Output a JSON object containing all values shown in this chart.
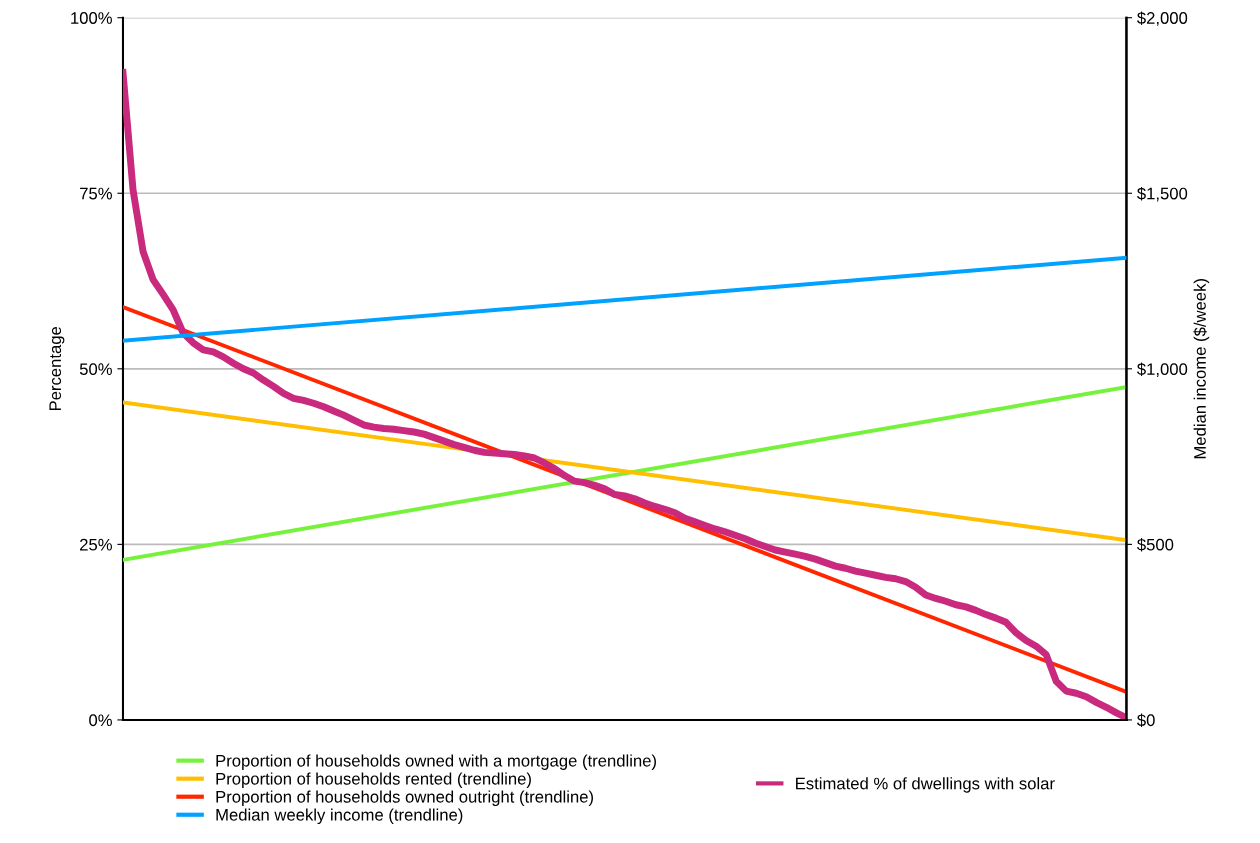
{
  "chart_data": {
    "type": "line",
    "ylabel": "Percentage",
    "y2label": "Median income ($/week)",
    "categories": [
      null,
      null,
      null,
      null,
      null,
      null,
      null,
      null,
      null,
      null,
      null,
      null,
      null,
      null,
      null,
      null,
      null,
      null,
      null,
      null,
      null,
      null,
      null,
      null,
      null,
      null,
      null,
      null,
      null,
      null,
      null,
      null,
      null,
      null,
      null,
      null,
      null,
      null,
      null,
      null,
      null,
      null,
      null,
      null,
      null,
      null,
      null,
      null,
      null,
      null,
      null,
      null,
      null,
      null,
      null,
      null,
      null,
      null,
      null,
      null,
      null,
      null,
      null,
      null,
      null,
      null,
      null,
      null,
      null,
      null,
      null,
      null,
      null,
      null,
      null,
      null,
      null,
      null,
      null,
      null,
      null,
      null,
      null,
      null,
      null,
      null,
      null,
      null,
      null,
      null,
      null,
      null,
      null,
      null,
      null,
      null,
      null,
      null,
      null,
      null,
      null
    ],
    "ylim": [
      0,
      100
    ],
    "yticks": [
      {
        "value": 0,
        "label": "0%"
      },
      {
        "value": 25,
        "label": "25%"
      },
      {
        "value": 50,
        "label": "50%"
      },
      {
        "value": 75,
        "label": "75%"
      },
      {
        "value": 100,
        "label": "100%"
      }
    ],
    "y2lim": [
      0,
      2000
    ],
    "y2ticks": [
      {
        "value": 0,
        "label": "$0"
      },
      {
        "value": 500,
        "label": "$500"
      },
      {
        "value": 1000,
        "label": "$1,000"
      },
      {
        "value": 1500,
        "label": "$1,500"
      },
      {
        "value": 2000,
        "label": "$2,000"
      }
    ],
    "grid": "y",
    "legend": "bottom",
    "marker": "none",
    "line_style": "solid",
    "series": [
      {
        "name": "Proportion of households owned with a mortgage (trendline)",
        "color": "#77f23c",
        "values": [
          22.8,
          null,
          null,
          null,
          null,
          null,
          null,
          null,
          null,
          null,
          null,
          null,
          null,
          null,
          null,
          null,
          null,
          null,
          null,
          null,
          null,
          null,
          null,
          null,
          null,
          null,
          null,
          null,
          null,
          null,
          null,
          null,
          null,
          null,
          null,
          null,
          null,
          null,
          null,
          null,
          null,
          null,
          null,
          null,
          null,
          null,
          null,
          null,
          null,
          null,
          null,
          null,
          null,
          null,
          null,
          null,
          null,
          null,
          null,
          null,
          null,
          null,
          null,
          null,
          null,
          null,
          null,
          null,
          null,
          null,
          null,
          null,
          null,
          null,
          null,
          null,
          null,
          null,
          null,
          null,
          null,
          null,
          null,
          null,
          null,
          null,
          null,
          null,
          null,
          null,
          null,
          null,
          null,
          null,
          null,
          null,
          null,
          null,
          null,
          null,
          47.4
        ]
      },
      {
        "name": "Proportion of households rented (trendline)",
        "color": "#ffbf00",
        "values": [
          45.2,
          null,
          null,
          null,
          null,
          null,
          null,
          null,
          null,
          null,
          null,
          null,
          null,
          null,
          null,
          null,
          null,
          null,
          null,
          null,
          null,
          null,
          null,
          null,
          null,
          null,
          null,
          null,
          null,
          null,
          null,
          null,
          null,
          null,
          null,
          null,
          null,
          null,
          null,
          null,
          null,
          null,
          null,
          null,
          null,
          null,
          null,
          null,
          null,
          null,
          null,
          null,
          null,
          null,
          null,
          null,
          null,
          null,
          null,
          null,
          null,
          null,
          null,
          null,
          null,
          null,
          null,
          null,
          null,
          null,
          null,
          null,
          null,
          null,
          null,
          null,
          null,
          null,
          null,
          null,
          null,
          null,
          null,
          null,
          null,
          null,
          null,
          null,
          null,
          null,
          null,
          null,
          null,
          null,
          null,
          null,
          null,
          null,
          null,
          null,
          25.6
        ]
      },
      {
        "name": "Proportion of households owned outright (trendline)",
        "color": "#ff2600",
        "values": [
          58.8,
          null,
          null,
          null,
          null,
          null,
          null,
          null,
          null,
          null,
          null,
          null,
          null,
          null,
          null,
          null,
          null,
          null,
          null,
          null,
          null,
          null,
          null,
          null,
          null,
          null,
          null,
          null,
          null,
          null,
          null,
          null,
          null,
          null,
          null,
          null,
          null,
          null,
          null,
          null,
          null,
          null,
          null,
          null,
          null,
          null,
          null,
          null,
          null,
          null,
          null,
          null,
          null,
          null,
          null,
          null,
          null,
          null,
          null,
          null,
          null,
          null,
          null,
          null,
          null,
          null,
          null,
          null,
          null,
          null,
          null,
          null,
          null,
          null,
          null,
          null,
          null,
          null,
          null,
          null,
          null,
          null,
          null,
          null,
          null,
          null,
          null,
          null,
          null,
          null,
          null,
          null,
          null,
          null,
          null,
          null,
          null,
          null,
          null,
          null,
          4.0
        ]
      },
      {
        "name": "Median weekly income (trendline)",
        "color": "#00a2ff",
        "axis": "y2",
        "values": [
          1080,
          null,
          null,
          null,
          null,
          null,
          null,
          null,
          null,
          null,
          null,
          null,
          null,
          null,
          null,
          null,
          null,
          null,
          null,
          null,
          null,
          null,
          null,
          null,
          null,
          null,
          null,
          null,
          null,
          null,
          null,
          null,
          null,
          null,
          null,
          null,
          null,
          null,
          null,
          null,
          null,
          null,
          null,
          null,
          null,
          null,
          null,
          null,
          null,
          null,
          null,
          null,
          null,
          null,
          null,
          null,
          null,
          null,
          null,
          null,
          null,
          null,
          null,
          null,
          null,
          null,
          null,
          null,
          null,
          null,
          null,
          null,
          null,
          null,
          null,
          null,
          null,
          null,
          null,
          null,
          null,
          null,
          null,
          null,
          null,
          null,
          null,
          null,
          null,
          null,
          null,
          null,
          null,
          null,
          null,
          null,
          null,
          null,
          null,
          null,
          1316
        ]
      },
      {
        "name": "Estimated % of dwellings with solar",
        "color": "#c92a7e",
        "values": [
          92.2,
          75.5,
          66.7,
          62.7,
          60.6,
          58.4,
          55.1,
          53.7,
          52.7,
          52.4,
          51.7,
          50.8,
          50.0,
          49.4,
          48.4,
          47.5,
          46.5,
          45.8,
          45.5,
          45.1,
          44.6,
          44.0,
          43.4,
          42.7,
          42.0,
          41.7,
          41.5,
          41.4,
          41.2,
          41.0,
          40.7,
          40.2,
          39.7,
          39.2,
          38.8,
          38.4,
          38.1,
          38.0,
          37.9,
          37.8,
          37.6,
          37.3,
          36.6,
          35.8,
          34.8,
          34.0,
          33.8,
          33.4,
          32.9,
          32.1,
          31.9,
          31.5,
          30.9,
          30.4,
          30.0,
          29.5,
          28.7,
          28.2,
          27.7,
          27.2,
          26.8,
          26.3,
          25.8,
          25.2,
          24.7,
          24.2,
          23.9,
          23.6,
          23.3,
          22.9,
          22.4,
          21.9,
          21.6,
          21.2,
          20.9,
          20.6,
          20.3,
          20.1,
          19.7,
          18.9,
          17.8,
          17.3,
          16.9,
          16.4,
          16.1,
          15.6,
          15.0,
          14.5,
          13.9,
          12.4,
          11.3,
          10.5,
          9.3,
          5.5,
          4.1,
          3.8,
          3.3,
          2.5,
          1.8,
          1.0,
          0.3
        ]
      }
    ]
  }
}
